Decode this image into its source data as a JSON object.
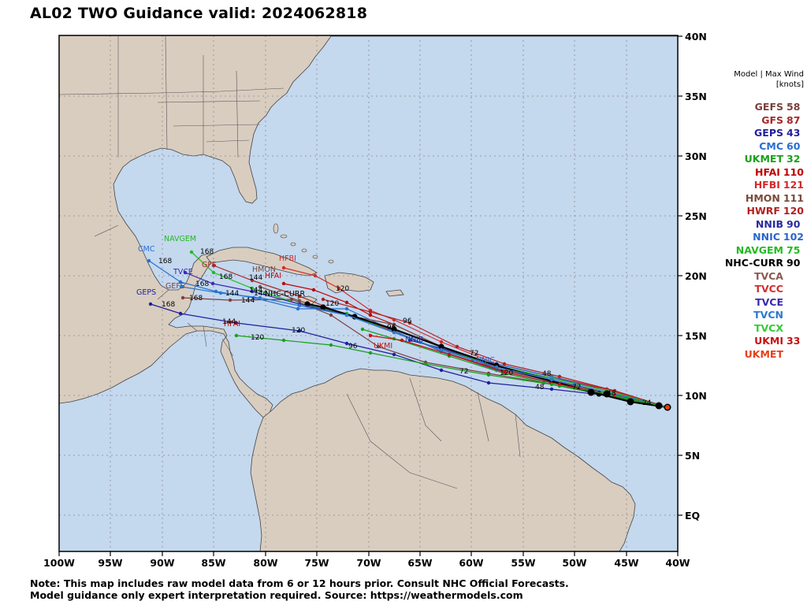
{
  "title": "AL02 TWO Guidance valid: 2024062818",
  "legend": {
    "header_line1": "Model | Max Wind",
    "header_line2": "[knots]",
    "models": [
      {
        "name": "GEFS",
        "wind": "58",
        "color": "#7b3f3f"
      },
      {
        "name": "GFS",
        "wind": "87",
        "color": "#a52a2a"
      },
      {
        "name": "GEPS",
        "wind": "43",
        "color": "#1e1ea0"
      },
      {
        "name": "CMC",
        "wind": "60",
        "color": "#2a6ed0"
      },
      {
        "name": "UKMET",
        "wind": "32",
        "color": "#1aa01a"
      },
      {
        "name": "HFAI",
        "wind": "110",
        "color": "#c00000"
      },
      {
        "name": "HFBI",
        "wind": "121",
        "color": "#d42a2a"
      },
      {
        "name": "HMON",
        "wind": "111",
        "color": "#7a4a3a"
      },
      {
        "name": "HWRF",
        "wind": "120",
        "color": "#b22020"
      },
      {
        "name": "NNIB",
        "wind": "90",
        "color": "#2a2aa0"
      },
      {
        "name": "NNIC",
        "wind": "102",
        "color": "#2a66cc"
      },
      {
        "name": "NAVGEM",
        "wind": "75",
        "color": "#22bb22"
      },
      {
        "name": "NHC-CURR",
        "wind": "90",
        "color": "#000000"
      },
      {
        "name": "TVCA",
        "wind": "",
        "color": "#8a5a50"
      },
      {
        "name": "TVCC",
        "wind": "",
        "color": "#d03030"
      },
      {
        "name": "TVCE",
        "wind": "",
        "color": "#3a2ab0"
      },
      {
        "name": "TVCN",
        "wind": "",
        "color": "#2a7ad0"
      },
      {
        "name": "TVCX",
        "wind": "",
        "color": "#33cc33"
      },
      {
        "name": "UKMI",
        "wind": "33",
        "color": "#c81010"
      },
      {
        "name": "UKMET",
        "wind": "",
        "color": "#e8401a"
      }
    ]
  },
  "axes": {
    "lon_labels": [
      "100W",
      "95W",
      "90W",
      "85W",
      "80W",
      "75W",
      "70W",
      "65W",
      "60W",
      "55W",
      "50W",
      "45W",
      "40W"
    ],
    "lat_labels": [
      "EQ",
      "5N",
      "10N",
      "15N",
      "20N",
      "25N",
      "30N",
      "35N",
      "40N"
    ]
  },
  "map_labels": {
    "navgem": "NAVGEM",
    "cmc": "CMC",
    "gfs": "GFS",
    "geps": "GEPS",
    "gefs": "GEFS",
    "hfbi": "HFBI",
    "hmon": "HMON",
    "hfai": "HFAI",
    "nhc_curr": "NHC-CURR",
    "hfai2": "HFAI",
    "nnib": "NNIB",
    "nnic": "NNIC",
    "ukmi": "UKMI",
    "tvce": "TVCE",
    "hwrf": "HWRF"
  },
  "hours": {
    "h168a": "168",
    "h168b": "168",
    "h168c": "168",
    "h168d": "168",
    "h168e": "168",
    "h168f": "168",
    "h144a": "144",
    "h144b": "144",
    "h144c": "144",
    "h144d": "144",
    "h144e": "144",
    "h144f": "144",
    "h120a": "120",
    "h120b": "120",
    "h120c": "120",
    "h120d": "120",
    "h120e": "120",
    "h96a": "96",
    "h96b": "96",
    "h96c": "96",
    "h72a": "72",
    "h72b": "72",
    "h72c": "72",
    "h48a": "48",
    "h48b": "48",
    "h48c": "48",
    "h24": "24"
  },
  "colors": {
    "ocean": "#c4d8ee",
    "land": "#d9cdc0",
    "border": "#555555",
    "grid": "#8a8a8a"
  },
  "note_line1": "Note: This map includes raw model data from 6 or 12 hours prior. Consult NHC Official Forecasts.",
  "note_line2": "Model guidance only expert interpretation required. Source: https://weathermodels.com"
}
